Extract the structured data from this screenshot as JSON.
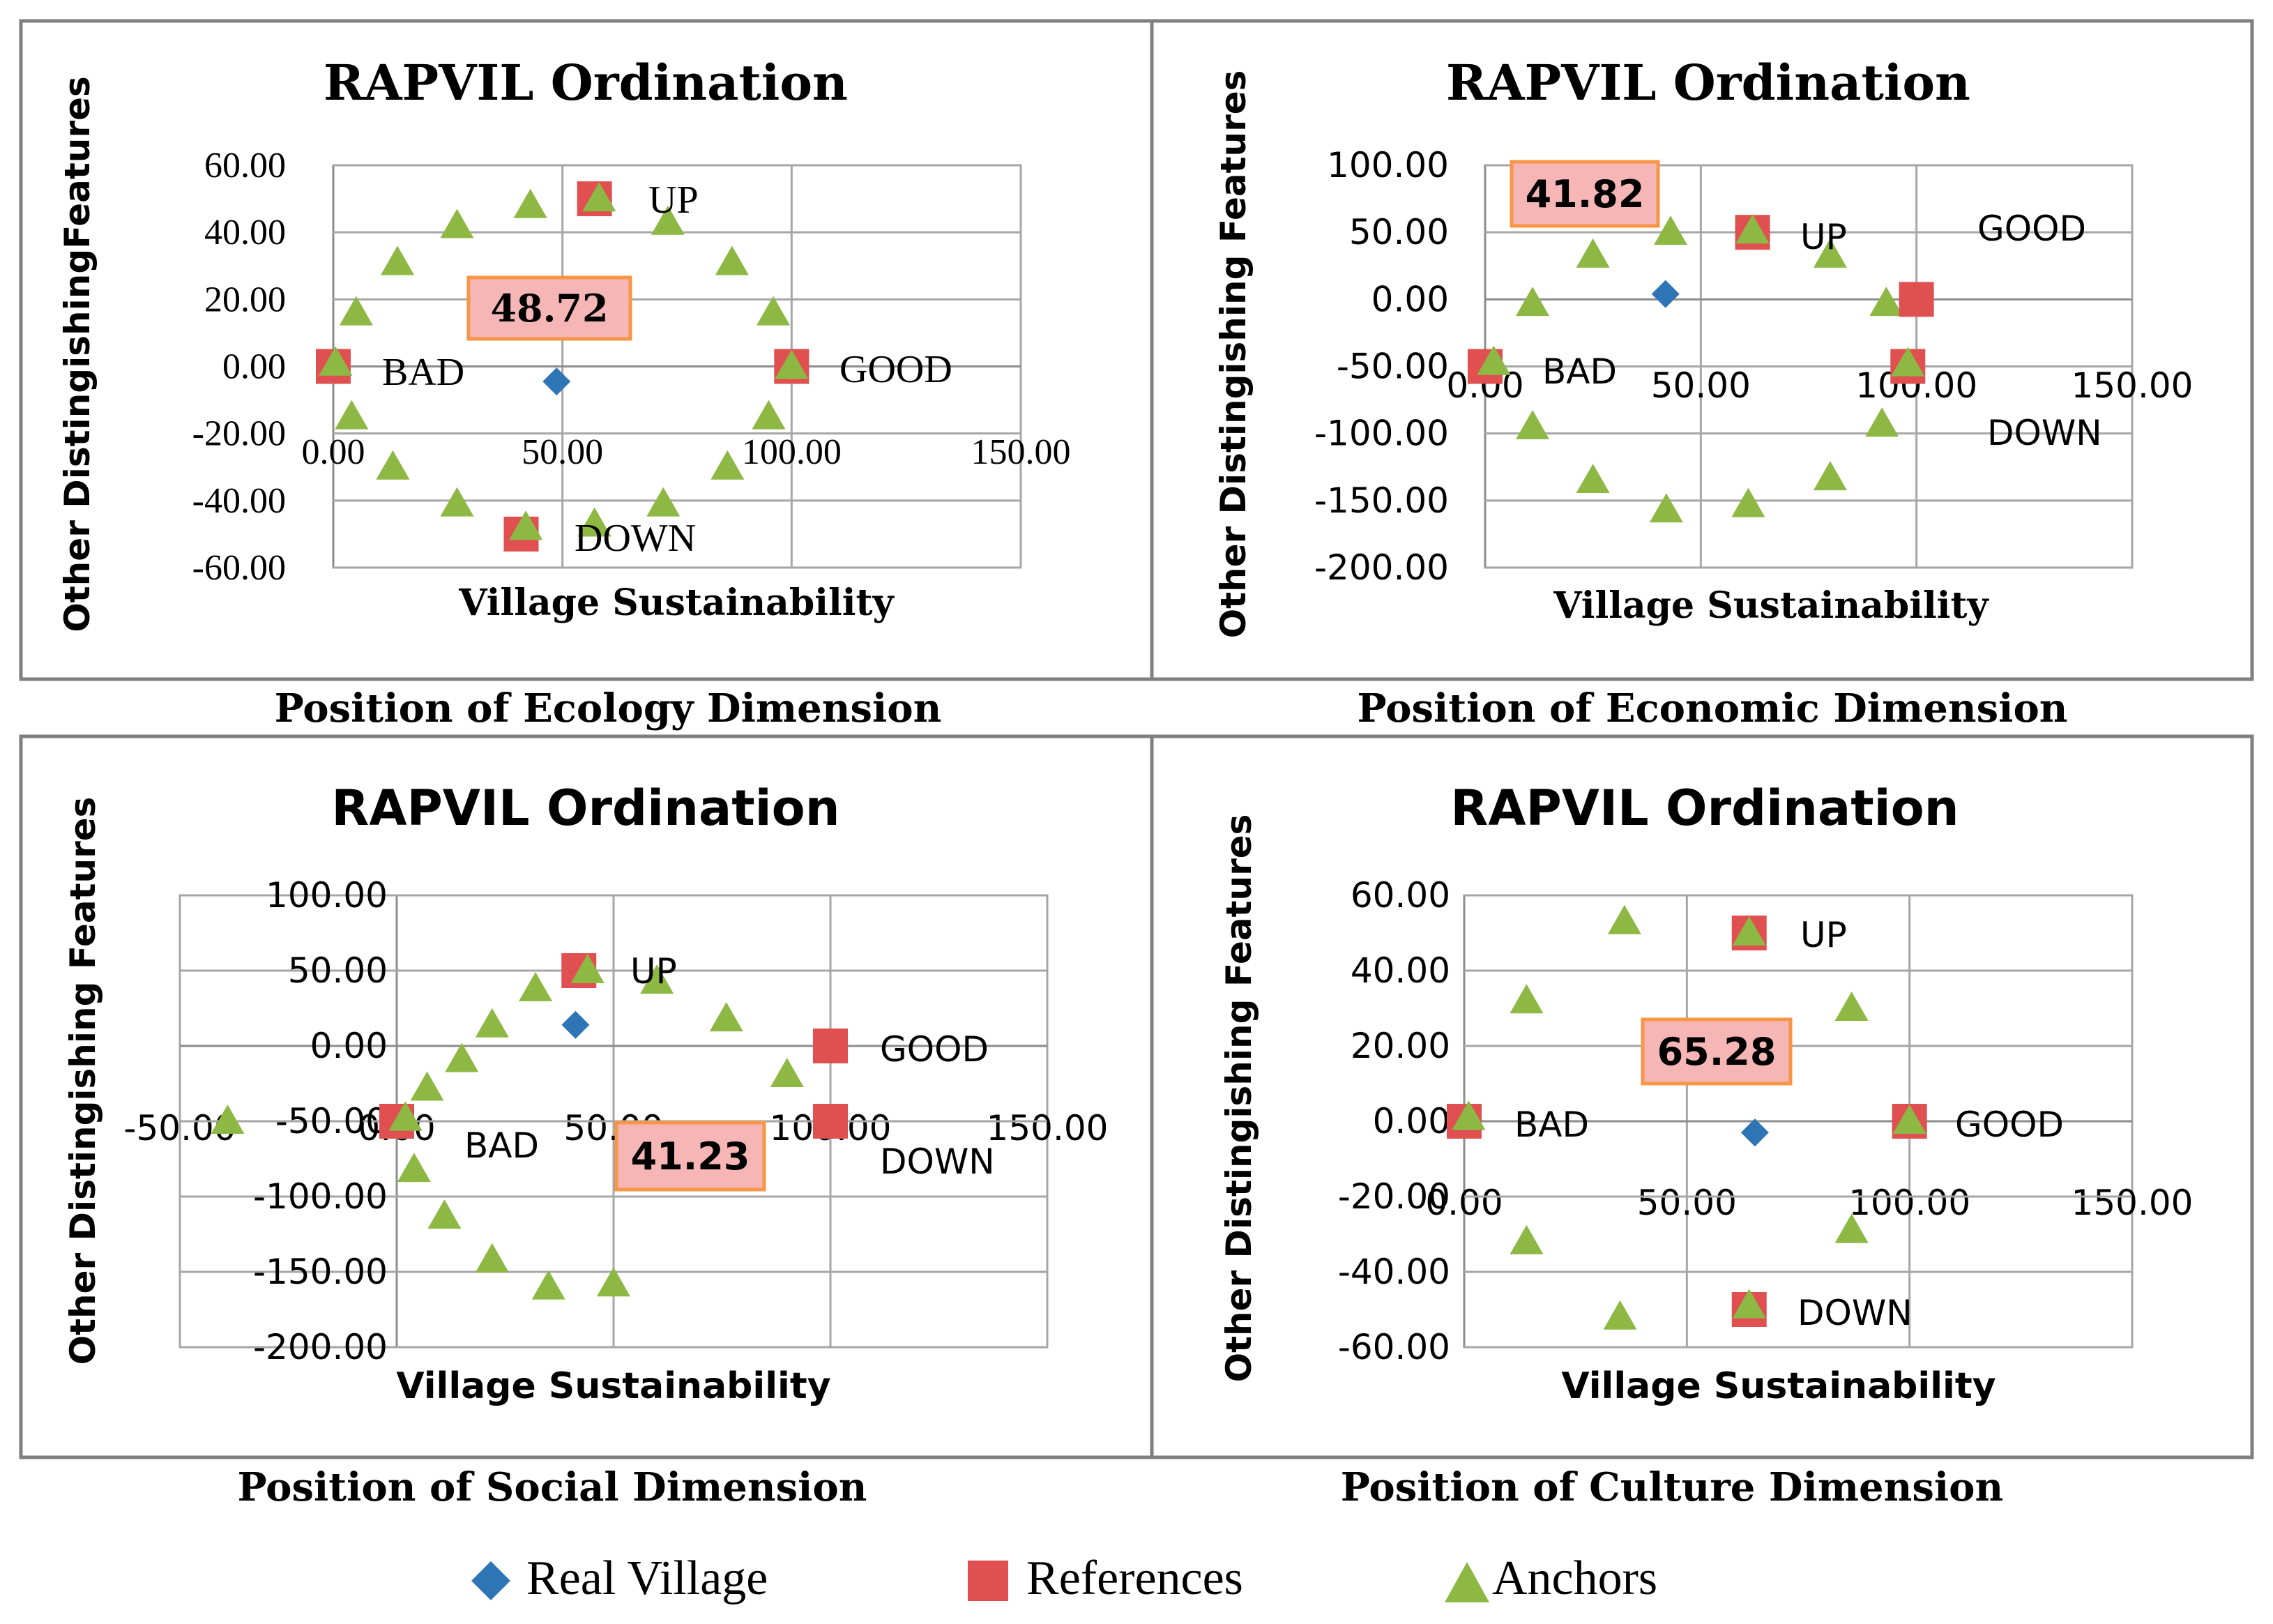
{
  "colors": {
    "real_village": "#2e75b6",
    "references": "#e05050",
    "anchors": "#8db843"
  },
  "legend": [
    {
      "name": "Real Village",
      "shape": "diamond",
      "color": "#2e75b6"
    },
    {
      "name": "References",
      "shape": "square",
      "color": "#e05050"
    },
    {
      "name": "Anchors",
      "shape": "triangle",
      "color": "#8db843"
    }
  ],
  "chart_data": [
    {
      "type": "scatter",
      "title": "RAPVIL Ordination",
      "caption": "Position of Ecology Dimension",
      "xlabel": "Village Sustainability",
      "ylabel": "Other DistingishingFeatures",
      "xlim": [
        0,
        150
      ],
      "ylim": [
        -60,
        60
      ],
      "xticks": [
        "0.00",
        "50.00",
        "100.00",
        "150.00"
      ],
      "yticks": [
        "60.00",
        "40.00",
        "20.00",
        "0.00",
        "-20.00",
        "-40.00",
        "-60.00"
      ],
      "grid": true,
      "value_label": "48.72",
      "real_village": [
        {
          "x": 48.72,
          "y": -4.5
        }
      ],
      "references": [
        {
          "x": 0,
          "y": 0,
          "label": "BAD"
        },
        {
          "x": 100,
          "y": 0,
          "label": "GOOD"
        },
        {
          "x": 57,
          "y": 50,
          "label": "UP"
        },
        {
          "x": 41,
          "y": -50,
          "label": "DOWN"
        }
      ],
      "anchors": [
        {
          "x": 0.5,
          "y": 1
        },
        {
          "x": 5,
          "y": 16
        },
        {
          "x": 14,
          "y": 31
        },
        {
          "x": 27,
          "y": 42
        },
        {
          "x": 43,
          "y": 48
        },
        {
          "x": 58,
          "y": 50
        },
        {
          "x": 73,
          "y": 43
        },
        {
          "x": 87,
          "y": 31
        },
        {
          "x": 96,
          "y": 16
        },
        {
          "x": 100,
          "y": 0
        },
        {
          "x": 95,
          "y": -15
        },
        {
          "x": 86,
          "y": -30
        },
        {
          "x": 72,
          "y": -41
        },
        {
          "x": 57,
          "y": -47
        },
        {
          "x": 42,
          "y": -48
        },
        {
          "x": 27,
          "y": -41
        },
        {
          "x": 13,
          "y": -30
        },
        {
          "x": 4,
          "y": -15
        }
      ]
    },
    {
      "type": "scatter",
      "title": "RAPVIL Ordination",
      "caption": "Position of Economic Dimension",
      "xlabel": "Village Sustainability",
      "ylabel": "Other Distingishing Features",
      "xlim": [
        0,
        150
      ],
      "ylim": [
        -200,
        100
      ],
      "xticks": [
        "0.00",
        "50.00",
        "100.00",
        "150.00"
      ],
      "yticks": [
        "100.00",
        "50.00",
        "0.00",
        "-50.00",
        "-100.00",
        "-150.00",
        "-200.00"
      ],
      "grid": true,
      "value_label": "41.82",
      "real_village": [
        {
          "x": 41.82,
          "y": 4
        }
      ],
      "references": [
        {
          "x": 0,
          "y": -50,
          "label": "BAD"
        },
        {
          "x": 100,
          "y": 0,
          "label": "GOOD"
        },
        {
          "x": 62,
          "y": 50,
          "label": "UP"
        },
        {
          "x": 98,
          "y": -50,
          "label": "DOWN"
        }
      ],
      "anchors": [
        {
          "x": 2,
          "y": -47
        },
        {
          "x": 11,
          "y": -3
        },
        {
          "x": 25,
          "y": 33
        },
        {
          "x": 43,
          "y": 50
        },
        {
          "x": 62,
          "y": 51
        },
        {
          "x": 80,
          "y": 33
        },
        {
          "x": 93,
          "y": -3
        },
        {
          "x": 98,
          "y": -48
        },
        {
          "x": 92,
          "y": -93
        },
        {
          "x": 80,
          "y": -133
        },
        {
          "x": 61,
          "y": -153
        },
        {
          "x": 42,
          "y": -157
        },
        {
          "x": 25,
          "y": -135
        },
        {
          "x": 11,
          "y": -95
        }
      ]
    },
    {
      "type": "scatter",
      "title": "RAPVIL Ordination",
      "caption": "Position of Social Dimension",
      "xlabel": "Village Sustainability",
      "ylabel": "Other Distingishing Features",
      "xlim": [
        -50,
        150
      ],
      "ylim": [
        -200,
        100
      ],
      "xticks": [
        "-50.00",
        "0.00",
        "50.00",
        "100.00",
        "150.00"
      ],
      "yticks": [
        "100.00",
        "50.00",
        "0.00",
        "-50.00",
        "-100.00",
        "-150.00",
        "-200.00"
      ],
      "grid": true,
      "value_label": "41.23",
      "real_village": [
        {
          "x": 41.23,
          "y": 14
        }
      ],
      "references": [
        {
          "x": 0,
          "y": -50,
          "label": "BAD"
        },
        {
          "x": 100,
          "y": 0,
          "label": "GOOD"
        },
        {
          "x": 42,
          "y": 50,
          "label": "UP"
        },
        {
          "x": 100,
          "y": -50,
          "label": "DOWN"
        }
      ],
      "anchors": [
        {
          "x": -39,
          "y": -50
        },
        {
          "x": 2,
          "y": -48
        },
        {
          "x": 4,
          "y": -82
        },
        {
          "x": 7,
          "y": -28
        },
        {
          "x": 11,
          "y": -113
        },
        {
          "x": 15,
          "y": -9
        },
        {
          "x": 22,
          "y": -142
        },
        {
          "x": 22,
          "y": 14
        },
        {
          "x": 32,
          "y": 38
        },
        {
          "x": 35,
          "y": -160
        },
        {
          "x": 44,
          "y": 50
        },
        {
          "x": 50,
          "y": -158
        },
        {
          "x": 60,
          "y": 43
        },
        {
          "x": 76,
          "y": 18
        },
        {
          "x": 90,
          "y": -19
        }
      ]
    },
    {
      "type": "scatter",
      "title": "RAPVIL Ordination",
      "caption": "Position of Culture Dimension",
      "xlabel": "Village Sustainability",
      "ylabel": "Other Distingishing Features",
      "xlim": [
        0,
        150
      ],
      "ylim": [
        -60,
        60
      ],
      "xticks": [
        "0.00",
        "50.00",
        "100.00",
        "150.00"
      ],
      "yticks": [
        "60.00",
        "40.00",
        "20.00",
        "0.00",
        "-20.00",
        "-40.00",
        "-60.00"
      ],
      "grid": true,
      "value_label": "65.28",
      "real_village": [
        {
          "x": 65.28,
          "y": -3
        }
      ],
      "references": [
        {
          "x": 0,
          "y": 0,
          "label": "BAD"
        },
        {
          "x": 100,
          "y": 0,
          "label": "GOOD"
        },
        {
          "x": 64,
          "y": 50,
          "label": "UP"
        },
        {
          "x": 64,
          "y": -50,
          "label": "DOWN"
        }
      ],
      "anchors": [
        {
          "x": 1,
          "y": 1
        },
        {
          "x": 14,
          "y": 32
        },
        {
          "x": 36,
          "y": 53
        },
        {
          "x": 64,
          "y": 50
        },
        {
          "x": 87,
          "y": 30
        },
        {
          "x": 100,
          "y": 0
        },
        {
          "x": 87,
          "y": -29
        },
        {
          "x": 64,
          "y": -49
        },
        {
          "x": 35,
          "y": -52
        },
        {
          "x": 14,
          "y": -32
        }
      ]
    }
  ]
}
